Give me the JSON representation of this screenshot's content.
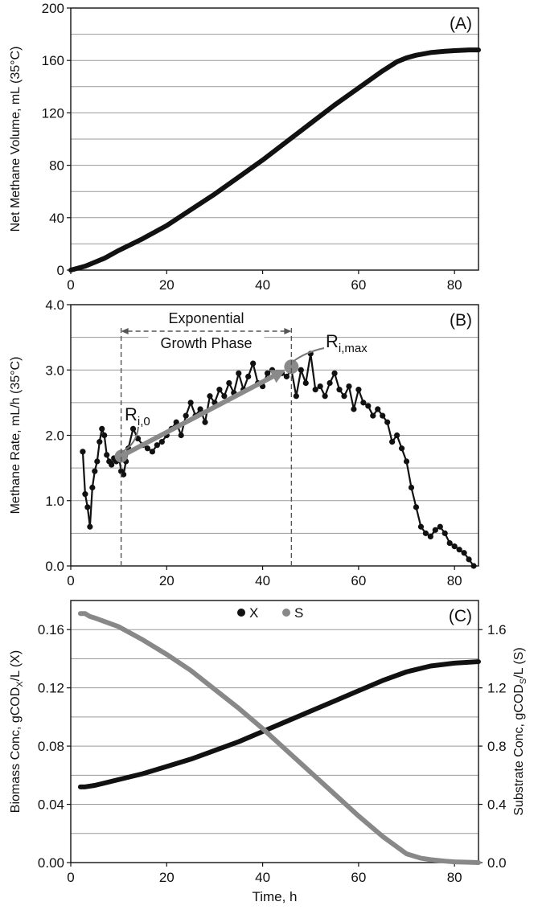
{
  "chart_data": [
    {
      "panel": "(A)",
      "type": "line",
      "ylabel": "Net Methane Volume, mL (35°C)",
      "xlim": [
        0,
        85
      ],
      "ylim": [
        0,
        200
      ],
      "xticks": [
        0,
        20,
        40,
        60,
        80
      ],
      "yticks": [
        0,
        40,
        80,
        120,
        160,
        200
      ],
      "ytick_labels": [
        "0",
        "40",
        "80",
        "120",
        "160",
        "200"
      ],
      "ygrid": [
        20,
        40,
        60,
        80,
        100,
        120,
        140,
        160,
        180
      ],
      "series": [
        {
          "name": "Net methane volume",
          "color": "#111111",
          "x": [
            0,
            1,
            2,
            3,
            5,
            7,
            10,
            15,
            20,
            25,
            30,
            35,
            40,
            45,
            50,
            55,
            60,
            65,
            68,
            70,
            72,
            75,
            78,
            80,
            83,
            85
          ],
          "y": [
            0,
            1,
            2,
            3,
            6,
            9,
            15,
            24,
            34,
            46,
            58,
            71,
            84,
            98,
            112,
            126,
            139,
            152,
            159,
            162,
            164,
            166,
            167,
            167.5,
            168,
            168
          ]
        }
      ]
    },
    {
      "panel": "(B)",
      "type": "scatter",
      "ylabel": "Methane Rate, mL/h (35°C)",
      "xlim": [
        0,
        85
      ],
      "ylim": [
        0,
        4
      ],
      "xticks": [
        0,
        20,
        40,
        60,
        80
      ],
      "yticks": [
        0,
        1,
        2,
        3,
        4
      ],
      "ytick_labels": [
        "0.0",
        "1.0",
        "2.0",
        "3.0",
        "4.0"
      ],
      "ygrid": [
        0.5,
        1.0,
        1.5,
        2.0,
        2.5,
        3.0,
        3.5
      ],
      "series": [
        {
          "name": "Methane rate",
          "color": "#111111",
          "x": [
            2.5,
            3,
            3.5,
            4,
            4.5,
            5,
            5.5,
            6,
            6.5,
            7,
            7.5,
            8,
            8.5,
            9,
            9.5,
            10,
            10.5,
            11,
            11.5,
            12,
            13,
            14,
            15,
            16,
            17,
            18,
            19,
            20,
            21,
            22,
            23,
            24,
            25,
            26,
            27,
            28,
            29,
            30,
            31,
            32,
            33,
            34,
            35,
            36,
            37,
            38,
            39,
            40,
            41,
            42,
            43,
            44,
            45,
            46,
            47,
            48,
            49,
            50,
            51,
            52,
            53,
            54,
            55,
            56,
            57,
            58,
            59,
            60,
            61,
            62,
            63,
            64,
            65,
            66,
            67,
            68,
            69,
            70,
            71,
            72,
            73,
            74,
            75,
            76,
            77,
            78,
            79,
            80,
            81,
            82,
            83,
            84
          ],
          "y": [
            1.75,
            1.1,
            0.9,
            0.6,
            1.2,
            1.45,
            1.6,
            1.9,
            2.1,
            2.0,
            1.7,
            1.6,
            1.55,
            1.65,
            1.6,
            1.7,
            1.45,
            1.4,
            1.6,
            1.8,
            2.1,
            1.95,
            1.85,
            1.8,
            1.75,
            1.85,
            1.9,
            2.0,
            2.1,
            2.2,
            2.0,
            2.3,
            2.5,
            2.3,
            2.4,
            2.2,
            2.6,
            2.5,
            2.7,
            2.6,
            2.8,
            2.65,
            2.95,
            2.7,
            2.9,
            3.1,
            2.8,
            2.75,
            2.95,
            3.0,
            2.9,
            2.95,
            2.9,
            3.0,
            2.6,
            3.0,
            2.8,
            3.25,
            2.7,
            2.75,
            2.6,
            2.8,
            2.95,
            2.7,
            2.6,
            2.75,
            2.4,
            2.7,
            2.5,
            2.45,
            2.3,
            2.4,
            2.3,
            2.2,
            1.9,
            2.0,
            1.8,
            1.6,
            1.2,
            0.9,
            0.6,
            0.5,
            0.45,
            0.55,
            0.6,
            0.5,
            0.35,
            0.3,
            0.25,
            0.2,
            0.1,
            0.0
          ]
        },
        {
          "name": "Exponential growth trend",
          "color": "#8a8a8a",
          "x": [
            10.5,
            46
          ],
          "y": [
            1.68,
            3.05
          ]
        }
      ],
      "annotations": {
        "phase_label_line1": "Exponential",
        "phase_label_line2": "Growth Phase",
        "phase_x_range": [
          10.5,
          46
        ],
        "ri0_main": "R",
        "ri0_sub": "i,0",
        "rimax_main": "R",
        "rimax_sub": "i,max"
      }
    },
    {
      "panel": "(C)",
      "type": "line",
      "xlabel": "Time, h",
      "ylabel_main": "Biomass Conc, gCOD",
      "ylabel_sub": "X",
      "ylabel_tail": "/L (X)",
      "y2label_main": "Substrate Conc, gCOD",
      "y2label_sub": "S",
      "y2label_tail": "/L (S)",
      "xlim": [
        0,
        85
      ],
      "ylim": [
        0,
        0.18
      ],
      "y2lim": [
        0,
        1.8
      ],
      "xticks": [
        0,
        20,
        40,
        60,
        80
      ],
      "yticks": [
        0,
        0.04,
        0.08,
        0.12,
        0.16
      ],
      "ytick_labels": [
        "0.00",
        "0.04",
        "0.08",
        "0.12",
        "0.16"
      ],
      "y2ticks": [
        0,
        0.4,
        0.8,
        1.2,
        1.6
      ],
      "y2tick_labels": [
        "0.0",
        "0.4",
        "0.8",
        "1.2",
        "1.6"
      ],
      "ygrid": [
        0.02,
        0.04,
        0.06,
        0.08,
        0.1,
        0.12,
        0.14,
        0.16
      ],
      "legend": [
        "X",
        "S"
      ],
      "legend_position": "top-center",
      "series": [
        {
          "name": "X",
          "axis": "left",
          "color": "#111111",
          "x": [
            2,
            3,
            5,
            10,
            15,
            20,
            25,
            30,
            35,
            40,
            45,
            50,
            55,
            60,
            65,
            70,
            75,
            80,
            85
          ],
          "y": [
            0.052,
            0.052,
            0.053,
            0.057,
            0.061,
            0.066,
            0.071,
            0.077,
            0.083,
            0.09,
            0.097,
            0.104,
            0.111,
            0.118,
            0.125,
            0.131,
            0.135,
            0.137,
            0.138
          ]
        },
        {
          "name": "S",
          "axis": "right",
          "color": "#888888",
          "x": [
            2,
            3,
            4,
            5,
            10,
            15,
            20,
            25,
            30,
            35,
            40,
            45,
            50,
            55,
            60,
            65,
            70,
            73,
            75,
            78,
            80,
            83,
            85
          ],
          "y": [
            1.71,
            1.71,
            1.69,
            1.68,
            1.62,
            1.53,
            1.43,
            1.32,
            1.19,
            1.06,
            0.92,
            0.77,
            0.62,
            0.47,
            0.32,
            0.18,
            0.06,
            0.03,
            0.02,
            0.01,
            0.005,
            0.002,
            0.0
          ]
        }
      ]
    }
  ]
}
